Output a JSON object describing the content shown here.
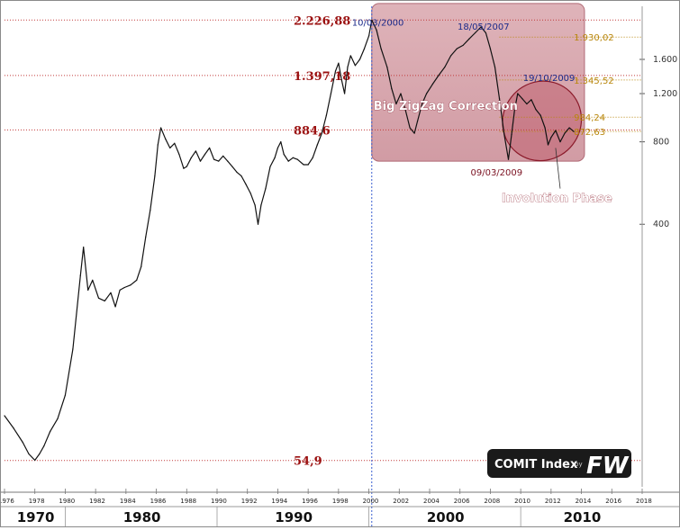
{
  "chart_data": {
    "type": "line",
    "title": "COMIT Index",
    "logo_text": "FW",
    "logo_by": "by",
    "y_scale": "log",
    "ylim": [
      44,
      2500
    ],
    "xlim": [
      1976,
      2018
    ],
    "x_ticks": [
      "1976",
      "1978",
      "1980",
      "1982",
      "1984",
      "1986",
      "1988",
      "1990",
      "1992",
      "1994",
      "1996",
      "1998",
      "2000",
      "2002",
      "2004",
      "2006",
      "2008",
      "2010",
      "2012",
      "2014",
      "2016",
      "2018"
    ],
    "y_ticks": [
      {
        "value": 1600,
        "label": "1.600"
      },
      {
        "value": 1200,
        "label": "1.200"
      },
      {
        "value": 800,
        "label": "800"
      },
      {
        "value": 400,
        "label": "400"
      }
    ],
    "decades": [
      "1970",
      "1980",
      "1990",
      "2000",
      "2010"
    ],
    "levels": [
      {
        "value": 2226.88,
        "label": "2.226,88"
      },
      {
        "value": 1397.18,
        "label": "1.397,18"
      },
      {
        "value": 884.6,
        "label": "884,6"
      },
      {
        "value": 54.9,
        "label": "54,9"
      }
    ],
    "right_levels": [
      {
        "value": 1930.02,
        "label": "1.930,02"
      },
      {
        "value": 1345.52,
        "label": "1.345,52"
      },
      {
        "value": 984.24,
        "label": "984,24"
      },
      {
        "value": 872.63,
        "label": "872,63"
      }
    ],
    "date_annotations": [
      {
        "label": "10/03/2000",
        "x": 2000.19,
        "y": 2226.88
      },
      {
        "label": "18/05/2007",
        "x": 2007.38,
        "y": 2100
      },
      {
        "label": "19/10/2009",
        "x": 2009.8,
        "y": 1200
      },
      {
        "label": "09/03/2009",
        "x": 2009.19,
        "y": 690
      }
    ],
    "vertical_marker_x": 2000.19,
    "shaded_region": {
      "x": [
        2000.19,
        2014.2
      ],
      "y": [
        680,
        2560
      ],
      "label": "Big ZigZag Correction"
    },
    "ellipse_region": {
      "label": "Involution Phase",
      "x": [
        2009.2,
        2013.6
      ],
      "y": [
        700,
        1300
      ]
    },
    "series": [
      {
        "x": [
          1976.0,
          1976.6,
          1977.2,
          1977.6,
          1978.0,
          1978.3,
          1978.6,
          1979.0,
          1979.5,
          1980.0,
          1980.5,
          1981.0,
          1981.2,
          1981.5,
          1981.8,
          1982.2,
          1982.6,
          1983.0,
          1983.3,
          1983.6,
          1983.9,
          1984.3,
          1984.7,
          1985.0,
          1985.3,
          1985.6,
          1985.9,
          1986.1,
          1986.3,
          1986.6,
          1986.9,
          1987.2,
          1987.5,
          1987.8,
          1988.0,
          1988.3,
          1988.6,
          1988.9,
          1989.2,
          1989.5,
          1989.8,
          1990.1,
          1990.4,
          1990.7,
          1991.0,
          1991.3,
          1991.6,
          1991.9,
          1992.2,
          1992.5,
          1992.7,
          1992.9,
          1993.2,
          1993.5,
          1993.8,
          1994.0,
          1994.2,
          1994.4,
          1994.7,
          1995.0,
          1995.3,
          1995.7,
          1996.0,
          1996.3,
          1996.6,
          1996.9,
          1997.2,
          1997.5,
          1997.8,
          1998.0,
          1998.2,
          1998.4,
          1998.6,
          1998.8,
          1999.1,
          1999.4,
          1999.7,
          2000.0,
          2000.19,
          2000.5,
          2000.8,
          2001.2,
          2001.5,
          2001.8,
          2002.1,
          2002.4,
          2002.7,
          2003.0,
          2003.2,
          2003.5,
          2003.8,
          2004.2,
          2004.6,
          2005.0,
          2005.4,
          2005.8,
          2006.2,
          2006.6,
          2007.0,
          2007.38,
          2007.7,
          2008.0,
          2008.3,
          2008.6,
          2008.9,
          2009.19,
          2009.4,
          2009.6,
          2009.8,
          2010.1,
          2010.4,
          2010.7,
          2011.0,
          2011.3,
          2011.6,
          2011.8,
          2012.0,
          2012.3,
          2012.6,
          2012.9,
          2013.2,
          2013.5
        ],
        "values": [
          80,
          72,
          64,
          58,
          55,
          58,
          62,
          70,
          78,
          95,
          140,
          260,
          330,
          230,
          250,
          215,
          210,
          225,
          200,
          230,
          235,
          240,
          250,
          280,
          360,
          450,
          600,
          780,
          900,
          820,
          760,
          790,
          720,
          640,
          650,
          700,
          740,
          680,
          720,
          760,
          690,
          680,
          710,
          680,
          650,
          620,
          600,
          560,
          520,
          470,
          400,
          470,
          540,
          650,
          700,
          760,
          800,
          720,
          680,
          700,
          690,
          660,
          660,
          700,
          780,
          860,
          1000,
          1200,
          1450,
          1550,
          1350,
          1200,
          1500,
          1650,
          1520,
          1600,
          1750,
          1950,
          2226,
          2050,
          1750,
          1500,
          1250,
          1100,
          1200,
          1050,
          900,
          860,
          950,
          1100,
          1200,
          1300,
          1400,
          1500,
          1650,
          1750,
          1800,
          1900,
          2000,
          2100,
          2000,
          1750,
          1500,
          1150,
          860,
          690,
          850,
          1050,
          1200,
          1150,
          1100,
          1140,
          1050,
          1000,
          900,
          780,
          830,
          880,
          800,
          860,
          900,
          872
        ]
      }
    ]
  }
}
